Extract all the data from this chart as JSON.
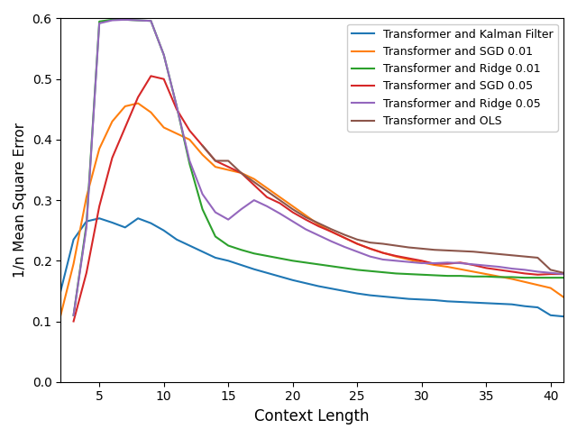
{
  "title": "",
  "xlabel": "Context Length",
  "ylabel": "1/n Mean Square Error",
  "xlim": [
    2,
    41
  ],
  "ylim": [
    0.0,
    0.6
  ],
  "xticks": [
    5,
    10,
    15,
    20,
    25,
    30,
    35,
    40
  ],
  "yticks": [
    0.0,
    0.1,
    0.2,
    0.3,
    0.4,
    0.5,
    0.6
  ],
  "series": [
    {
      "label": "Transformer and Kalman Filter",
      "color": "#1f77b4",
      "x": [
        2,
        3,
        4,
        5,
        6,
        7,
        8,
        9,
        10,
        11,
        12,
        13,
        14,
        15,
        16,
        17,
        18,
        19,
        20,
        21,
        22,
        23,
        24,
        25,
        26,
        27,
        28,
        29,
        30,
        31,
        32,
        33,
        34,
        35,
        36,
        37,
        38,
        39,
        40,
        41
      ],
      "y": [
        0.15,
        0.235,
        0.265,
        0.27,
        0.263,
        0.255,
        0.27,
        0.262,
        0.25,
        0.235,
        0.225,
        0.215,
        0.205,
        0.2,
        0.193,
        0.186,
        0.18,
        0.174,
        0.168,
        0.163,
        0.158,
        0.154,
        0.15,
        0.146,
        0.143,
        0.141,
        0.139,
        0.137,
        0.136,
        0.135,
        0.133,
        0.132,
        0.131,
        0.13,
        0.129,
        0.128,
        0.125,
        0.123,
        0.11,
        0.108
      ]
    },
    {
      "label": "Transformer and SGD 0.01",
      "color": "#ff7f0e",
      "x": [
        2,
        3,
        4,
        5,
        6,
        7,
        8,
        9,
        10,
        11,
        12,
        13,
        14,
        15,
        16,
        17,
        18,
        19,
        20,
        21,
        22,
        23,
        24,
        25,
        26,
        27,
        28,
        29,
        30,
        31,
        32,
        33,
        34,
        35,
        36,
        37,
        38,
        39,
        40,
        41
      ],
      "y": [
        0.11,
        0.195,
        0.305,
        0.385,
        0.43,
        0.455,
        0.46,
        0.445,
        0.42,
        0.41,
        0.4,
        0.375,
        0.355,
        0.35,
        0.345,
        0.335,
        0.32,
        0.305,
        0.29,
        0.275,
        0.26,
        0.248,
        0.238,
        0.228,
        0.22,
        0.213,
        0.207,
        0.202,
        0.197,
        0.193,
        0.19,
        0.186,
        0.182,
        0.178,
        0.174,
        0.17,
        0.165,
        0.16,
        0.155,
        0.14
      ]
    },
    {
      "label": "Transformer and Ridge 0.01",
      "color": "#2ca02c",
      "x": [
        3,
        4,
        5,
        6,
        7,
        8,
        9,
        10,
        11,
        12,
        13,
        14,
        15,
        16,
        17,
        18,
        19,
        20,
        21,
        22,
        23,
        24,
        25,
        26,
        27,
        28,
        29,
        30,
        31,
        32,
        33,
        34,
        35,
        36,
        37,
        38,
        39,
        40,
        41
      ],
      "y": [
        0.11,
        0.26,
        0.595,
        0.598,
        0.598,
        0.597,
        0.596,
        0.54,
        0.455,
        0.36,
        0.285,
        0.24,
        0.225,
        0.218,
        0.212,
        0.208,
        0.204,
        0.2,
        0.197,
        0.194,
        0.191,
        0.188,
        0.185,
        0.183,
        0.181,
        0.179,
        0.178,
        0.177,
        0.176,
        0.175,
        0.175,
        0.174,
        0.174,
        0.173,
        0.173,
        0.172,
        0.172,
        0.172,
        0.172
      ]
    },
    {
      "label": "Transformer and SGD 0.05",
      "color": "#d62728",
      "x": [
        3,
        4,
        5,
        6,
        7,
        8,
        9,
        10,
        11,
        12,
        13,
        14,
        15,
        16,
        17,
        18,
        19,
        20,
        21,
        22,
        23,
        24,
        25,
        26,
        27,
        28,
        29,
        30,
        31,
        32,
        33,
        34,
        35,
        36,
        37,
        38,
        39,
        40,
        41
      ],
      "y": [
        0.1,
        0.18,
        0.29,
        0.37,
        0.42,
        0.47,
        0.505,
        0.5,
        0.45,
        0.415,
        0.39,
        0.365,
        0.355,
        0.345,
        0.325,
        0.305,
        0.295,
        0.28,
        0.268,
        0.257,
        0.248,
        0.238,
        0.228,
        0.22,
        0.213,
        0.208,
        0.204,
        0.2,
        0.195,
        0.195,
        0.197,
        0.193,
        0.188,
        0.185,
        0.182,
        0.179,
        0.177,
        0.178,
        0.178
      ]
    },
    {
      "label": "Transformer and Ridge 0.05",
      "color": "#9467bd",
      "x": [
        3,
        4,
        5,
        6,
        7,
        8,
        9,
        10,
        11,
        12,
        13,
        14,
        15,
        16,
        17,
        18,
        19,
        20,
        21,
        22,
        23,
        24,
        25,
        26,
        27,
        28,
        29,
        30,
        31,
        32,
        33,
        34,
        35,
        36,
        37,
        38,
        39,
        40,
        41
      ],
      "y": [
        0.11,
        0.255,
        0.592,
        0.597,
        0.598,
        0.597,
        0.596,
        0.54,
        0.455,
        0.365,
        0.31,
        0.28,
        0.268,
        0.285,
        0.3,
        0.29,
        0.278,
        0.265,
        0.252,
        0.242,
        0.232,
        0.223,
        0.215,
        0.207,
        0.202,
        0.2,
        0.198,
        0.196,
        0.196,
        0.197,
        0.196,
        0.194,
        0.192,
        0.19,
        0.187,
        0.185,
        0.182,
        0.18,
        0.178
      ]
    },
    {
      "label": "Transformer and OLS",
      "color": "#8c564b",
      "x": [
        13,
        14,
        15,
        16,
        17,
        18,
        19,
        20,
        21,
        22,
        23,
        24,
        25,
        26,
        27,
        28,
        29,
        30,
        31,
        32,
        33,
        34,
        35,
        36,
        37,
        38,
        39,
        40,
        41
      ],
      "y": [
        0.39,
        0.365,
        0.365,
        0.345,
        0.33,
        0.315,
        0.3,
        0.285,
        0.272,
        0.262,
        0.252,
        0.243,
        0.235,
        0.23,
        0.228,
        0.225,
        0.222,
        0.22,
        0.218,
        0.217,
        0.216,
        0.215,
        0.213,
        0.211,
        0.209,
        0.207,
        0.205,
        0.185,
        0.18
      ]
    }
  ]
}
